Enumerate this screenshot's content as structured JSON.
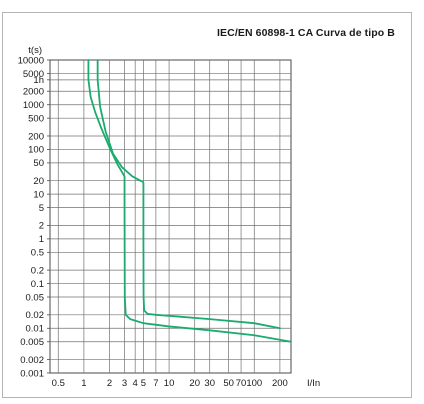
{
  "chart_data": {
    "type": "line",
    "title": "IEC/EN 60898-1 CA Curva de tipo B",
    "xlabel": "I/In",
    "ylabel": "t(s)",
    "x_scale": "log",
    "y_scale": "log",
    "xlim": [
      0.4,
      270
    ],
    "ylim": [
      0.001,
      10000
    ],
    "grid": true,
    "x_ticks": [
      {
        "value": 0.5,
        "label": "0.5"
      },
      {
        "value": 1,
        "label": "1"
      },
      {
        "value": 2,
        "label": "2"
      },
      {
        "value": 3,
        "label": "3"
      },
      {
        "value": 4,
        "label": "4"
      },
      {
        "value": 5,
        "label": "5"
      },
      {
        "value": 7,
        "label": "7"
      },
      {
        "value": 10,
        "label": "10"
      },
      {
        "value": 20,
        "label": "20"
      },
      {
        "value": 30,
        "label": "30"
      },
      {
        "value": 50,
        "label": "50"
      },
      {
        "value": 70,
        "label": "70"
      },
      {
        "value": 100,
        "label": "100"
      },
      {
        "value": 200,
        "label": "200"
      }
    ],
    "y_ticks": [
      {
        "value": 10000,
        "label": "10000"
      },
      {
        "value": 5000,
        "label": "5000"
      },
      {
        "value": 3600,
        "label": "1h"
      },
      {
        "value": 2000,
        "label": "2000"
      },
      {
        "value": 1000,
        "label": "1000"
      },
      {
        "value": 500,
        "label": "500"
      },
      {
        "value": 200,
        "label": "200"
      },
      {
        "value": 100,
        "label": "100"
      },
      {
        "value": 50,
        "label": "50"
      },
      {
        "value": 20,
        "label": "20"
      },
      {
        "value": 10,
        "label": "10"
      },
      {
        "value": 5,
        "label": "5"
      },
      {
        "value": 2,
        "label": "2"
      },
      {
        "value": 1,
        "label": "1"
      },
      {
        "value": 0.5,
        "label": "0.5"
      },
      {
        "value": 0.2,
        "label": "0.2"
      },
      {
        "value": 0.1,
        "label": "0.1"
      },
      {
        "value": 0.05,
        "label": "0.05"
      },
      {
        "value": 0.02,
        "label": "0.02"
      },
      {
        "value": 0.01,
        "label": "0.01"
      },
      {
        "value": 0.005,
        "label": "0.005"
      },
      {
        "value": 0.002,
        "label": "0.002"
      },
      {
        "value": 0.001,
        "label": "0.001"
      }
    ],
    "series": [
      {
        "color": "#1aab6e",
        "x": [
          1.13,
          1.13,
          1.2,
          1.35,
          1.6,
          2.0,
          2.5,
          3.0,
          3.0,
          3.02,
          3.1,
          3.5,
          5,
          10,
          30,
          100,
          270
        ],
        "y": [
          10000,
          3600,
          1500,
          700,
          300,
          110,
          45,
          25,
          5,
          0.05,
          0.02,
          0.016,
          0.013,
          0.011,
          0.009,
          0.007,
          0.005
        ]
      },
      {
        "color": "#1aab6e",
        "x": [
          1.45,
          1.45,
          1.55,
          1.8,
          2.2,
          2.8,
          3.7,
          4.6,
          4.9,
          5.0,
          5.0,
          5.02,
          5.1,
          5.6,
          7,
          10,
          30,
          100,
          200
        ],
        "y": [
          10000,
          3600,
          900,
          250,
          80,
          40,
          25,
          20,
          19,
          18,
          1,
          0.05,
          0.025,
          0.021,
          0.02,
          0.019,
          0.016,
          0.013,
          0.01
        ]
      }
    ]
  }
}
